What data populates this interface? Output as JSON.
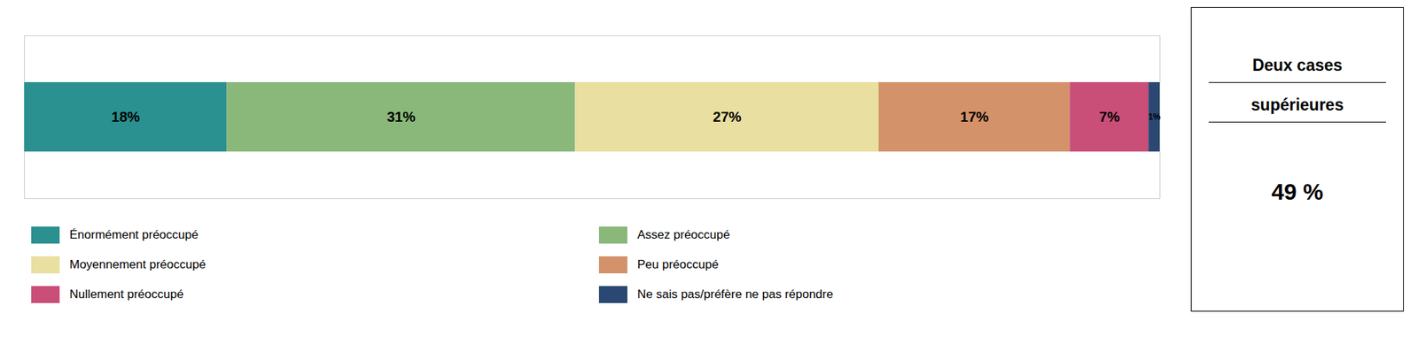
{
  "chart_data": {
    "type": "bar",
    "orientation": "horizontal",
    "stacked": true,
    "categories": [
      null
    ],
    "series": [
      {
        "name": "Énormément préoccupé",
        "color": "#2a9090",
        "values": [
          18
        ],
        "value_labels": [
          "18%"
        ]
      },
      {
        "name": "Assez préoccupé",
        "color": "#8ab87a",
        "values": [
          31
        ],
        "value_labels": [
          "31%"
        ]
      },
      {
        "name": "Moyennement préoccupé",
        "color": "#e8dfa0",
        "values": [
          27
        ],
        "value_labels": [
          "27%"
        ]
      },
      {
        "name": "Peu préoccupé",
        "color": "#d4926a",
        "values": [
          17
        ],
        "value_labels": [
          "17%"
        ]
      },
      {
        "name": "Nullement préoccupé",
        "color": "#c94f78",
        "values": [
          7
        ],
        "value_labels": [
          "7%"
        ]
      },
      {
        "name": "Ne sais pas/préfère ne pas répondre",
        "color": "#2b4872",
        "values": [
          1
        ],
        "value_labels": [
          "1%"
        ]
      }
    ],
    "xlim": [
      0,
      101
    ],
    "data_labels": true,
    "tick_labels": false,
    "grid": false,
    "legend": "bottom",
    "annotations": [
      "Deux cases",
      "supérieures",
      "49 %"
    ]
  }
}
